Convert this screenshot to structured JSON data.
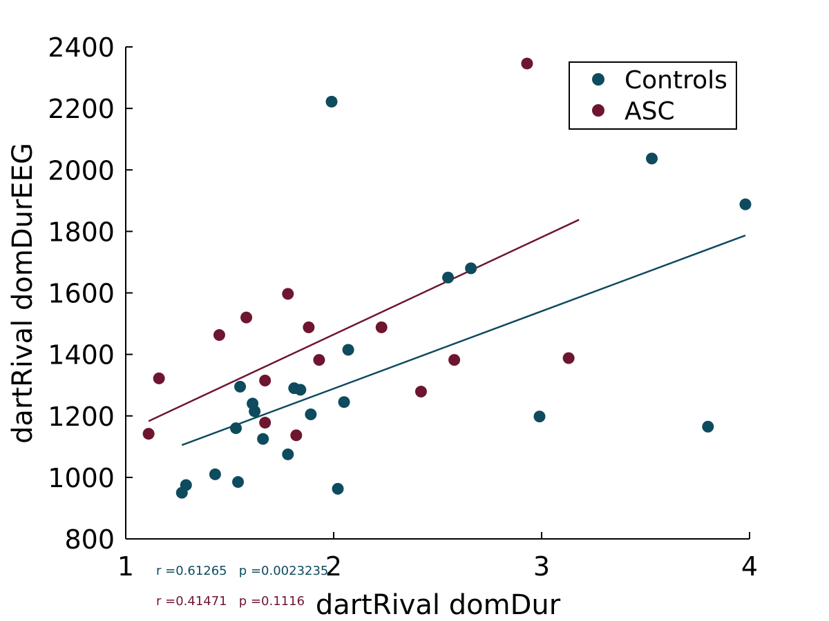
{
  "chart_data": {
    "type": "scatter",
    "xlabel": "dartRival domDur",
    "ylabel": "dartRival domDurEEG",
    "xlim": [
      1,
      4
    ],
    "ylim": [
      800,
      2400
    ],
    "xticks": [
      1,
      2,
      3,
      4
    ],
    "yticks": [
      800,
      1000,
      1200,
      1400,
      1600,
      1800,
      2000,
      2200,
      2400
    ],
    "grid": false,
    "legend_position": "top-right",
    "series": [
      {
        "name": "Controls",
        "color": "#0e4b5e",
        "points": [
          [
            1.27,
            950
          ],
          [
            1.29,
            975
          ],
          [
            1.43,
            1010
          ],
          [
            1.53,
            1160
          ],
          [
            1.54,
            985
          ],
          [
            1.55,
            1295
          ],
          [
            1.61,
            1240
          ],
          [
            1.62,
            1215
          ],
          [
            1.66,
            1125
          ],
          [
            1.78,
            1075
          ],
          [
            1.81,
            1290
          ],
          [
            1.84,
            1285
          ],
          [
            1.89,
            1205
          ],
          [
            1.99,
            2222
          ],
          [
            2.02,
            963
          ],
          [
            2.05,
            1245
          ],
          [
            2.07,
            1415
          ],
          [
            2.55,
            1650
          ],
          [
            2.66,
            1680
          ],
          [
            2.99,
            1198
          ],
          [
            3.53,
            2037
          ],
          [
            3.8,
            1165
          ],
          [
            3.98,
            1888
          ]
        ],
        "fit": [
          [
            1.27,
            1105
          ],
          [
            3.98,
            1787
          ]
        ],
        "stats": "r =0.61265   p =0.0023235"
      },
      {
        "name": "ASC",
        "color": "#6e1530",
        "points": [
          [
            1.11,
            1142
          ],
          [
            1.16,
            1322
          ],
          [
            1.45,
            1463
          ],
          [
            1.58,
            1520
          ],
          [
            1.67,
            1315
          ],
          [
            1.67,
            1178
          ],
          [
            1.78,
            1597
          ],
          [
            1.82,
            1137
          ],
          [
            1.88,
            1488
          ],
          [
            1.93,
            1382
          ],
          [
            2.23,
            1488
          ],
          [
            2.42,
            1279
          ],
          [
            2.58,
            1382
          ],
          [
            2.93,
            2346
          ],
          [
            3.13,
            1388
          ]
        ],
        "fit": [
          [
            1.11,
            1183
          ],
          [
            3.18,
            1838
          ]
        ],
        "stats": "r =0.41471   p =0.1116"
      }
    ]
  }
}
